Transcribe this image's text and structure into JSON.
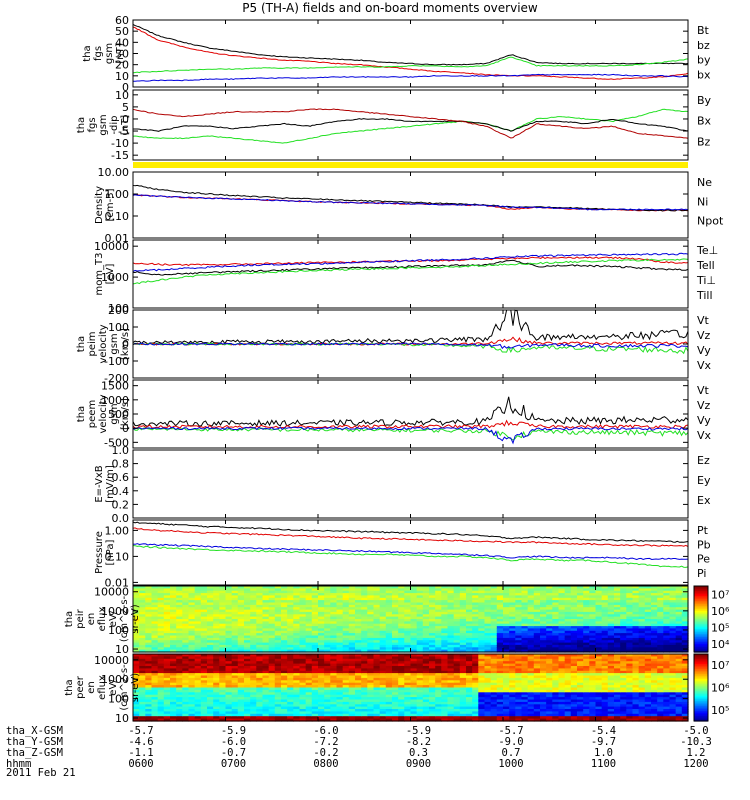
{
  "title": "P5 (TH-A) fields and on-board moments overview",
  "date": "2011 Feb 21",
  "colors": {
    "black": "#000000",
    "red": "#e00000",
    "green": "#22e022",
    "blue": "#0000dd",
    "darkred": "#b00000",
    "yellow": "#ffee00"
  },
  "time_axis": {
    "ticks": [
      "0600",
      "0700",
      "0800",
      "0900",
      "1000",
      "1100",
      "1200"
    ],
    "rows": [
      {
        "label": "tha_X-GSM",
        "values": [
          "-5.7",
          "-5.9",
          "-6.0",
          "-5.9",
          "-5.7",
          "-5.4",
          "-5.0"
        ]
      },
      {
        "label": "tha_Y-GSM",
        "values": [
          "-4.6",
          "-6.0",
          "-7.2",
          "-8.2",
          "-9.0",
          "-9.7",
          "-10.3"
        ]
      },
      {
        "label": "tha_Z-GSM",
        "values": [
          "-1.1",
          "-0.7",
          "-0.2",
          "0.3",
          "0.7",
          "1.0",
          "1.2"
        ]
      },
      {
        "label": "hhmm",
        "values": [
          "0600",
          "0700",
          "0800",
          "0900",
          "1000",
          "1100",
          "1200"
        ]
      }
    ]
  },
  "chart_data": [
    {
      "type": "line",
      "panel": "fgs_gsm",
      "ylabel": [
        "tha",
        "fgs",
        "gsm",
        "[nT]"
      ],
      "yticks": [
        "0",
        "10",
        "20",
        "30",
        "40",
        "50",
        "60"
      ],
      "ylim": [
        0,
        60
      ],
      "series": [
        {
          "name": "Bt",
          "color": "#000000",
          "values": [
            56,
            46,
            40,
            35,
            32,
            29,
            27,
            26,
            25,
            24,
            22,
            21,
            20,
            20,
            21,
            29,
            22,
            21,
            21,
            21,
            21,
            21,
            21
          ]
        },
        {
          "name": "bz",
          "color": "#e00000",
          "values": [
            54,
            42,
            36,
            31,
            28,
            26,
            24,
            23,
            21,
            20,
            18,
            16,
            14,
            13,
            11,
            10,
            10,
            9,
            8,
            7,
            8,
            9,
            12
          ]
        },
        {
          "name": "by",
          "color": "#22e022",
          "values": [
            13,
            14,
            15,
            16,
            16,
            17,
            17,
            17,
            18,
            18,
            18,
            19,
            19,
            18,
            19,
            27,
            19,
            19,
            19,
            19,
            20,
            22,
            25
          ]
        },
        {
          "name": "bx",
          "color": "#0000dd",
          "values": [
            5,
            6,
            6,
            7,
            7,
            8,
            8,
            8,
            9,
            9,
            9,
            9,
            10,
            10,
            10,
            10,
            11,
            11,
            11,
            11,
            10,
            10,
            9
          ]
        }
      ]
    },
    {
      "type": "line",
      "panel": "fgs_gsm_dip",
      "ylabel": [
        "tha",
        "fgs",
        "gsm",
        "-dip",
        "[nT]"
      ],
      "yticks": [
        "-15",
        "-10",
        "-5",
        "0",
        "5",
        "10"
      ],
      "ylim": [
        -17,
        12
      ],
      "series": [
        {
          "name": "By",
          "color": "#22e022",
          "values": [
            -7,
            -8,
            -8,
            -7,
            -8,
            -9,
            -10,
            -8,
            -6,
            -5,
            -4,
            -3,
            -2,
            -1,
            -2,
            -5,
            0,
            1,
            0,
            -1,
            1,
            4,
            3
          ]
        },
        {
          "name": "Bx",
          "color": "#000000",
          "values": [
            -4,
            -5,
            -3,
            -3,
            -4,
            -3,
            -2,
            -3,
            -1,
            0,
            0,
            -1,
            -1,
            -1,
            -2,
            -5,
            -1,
            -1,
            -2,
            0,
            -2,
            -3,
            -5
          ]
        },
        {
          "name": "Bz",
          "color": "#b00000",
          "values": [
            4,
            2,
            1,
            2,
            3,
            3,
            3,
            4,
            4,
            3,
            2,
            1,
            0,
            -1,
            -3,
            -8,
            -2,
            -3,
            -4,
            -3,
            -6,
            -7,
            -8
          ]
        }
      ]
    },
    {
      "type": "line",
      "panel": "density",
      "ylabel": [
        "Density",
        "[cm-3]"
      ],
      "yticks": [
        "0.01",
        "0.10",
        "1.00",
        "10.00"
      ],
      "ylim": [
        -2,
        1
      ],
      "log": true,
      "series": [
        {
          "name": "Ne",
          "color": "#e00000",
          "values": [
            0.9,
            0.8,
            0.7,
            0.65,
            0.6,
            0.55,
            0.5,
            0.45,
            0.42,
            0.4,
            0.38,
            0.36,
            0.34,
            0.32,
            0.3,
            0.2,
            0.25,
            0.22,
            0.2,
            0.2,
            0.18,
            0.18,
            0.18
          ]
        },
        {
          "name": "Ni",
          "color": "#000000",
          "values": [
            2.5,
            1.6,
            1.2,
            1.0,
            0.85,
            0.75,
            0.65,
            0.6,
            0.55,
            0.5,
            0.45,
            0.42,
            0.38,
            0.35,
            0.32,
            0.25,
            0.27,
            0.24,
            0.22,
            0.2,
            0.19,
            0.18,
            0.18
          ]
        },
        {
          "name": "Npot",
          "color": "#0000dd",
          "values": [
            0.9,
            0.8,
            0.7,
            0.65,
            0.6,
            0.55,
            0.5,
            0.45,
            0.42,
            0.4,
            0.38,
            0.36,
            0.34,
            0.32,
            0.3,
            0.25,
            0.25,
            0.22,
            0.2,
            0.2,
            0.2,
            0.2,
            0.2
          ]
        }
      ]
    },
    {
      "type": "line",
      "panel": "mom_temp",
      "ylabel": [
        "mom_T3",
        "[eV]"
      ],
      "yticks": [
        "100",
        "1000",
        "10000"
      ],
      "ylim": [
        2,
        4.2
      ],
      "log": true,
      "series": [
        {
          "name": "Te⊥",
          "color": "#e00000",
          "values": [
            2800,
            2600,
            2500,
            2500,
            2600,
            2700,
            2800,
            2900,
            3000,
            3100,
            3200,
            3300,
            3400,
            3600,
            3800,
            4000,
            4200,
            4300,
            4300,
            4200,
            4000,
            3000,
            2800
          ]
        },
        {
          "name": "Tell",
          "color": "#000000",
          "values": [
            1500,
            1200,
            1300,
            1400,
            1500,
            1600,
            1700,
            1800,
            1900,
            2000,
            2100,
            2200,
            2300,
            2400,
            2500,
            3500,
            2200,
            2400,
            2300,
            2200,
            2000,
            1800,
            1700
          ]
        },
        {
          "name": "Ti⊥",
          "color": "#0000dd",
          "values": [
            1600,
            1700,
            1900,
            2100,
            2300,
            2500,
            2600,
            2700,
            2800,
            3000,
            3200,
            3400,
            3600,
            3800,
            4100,
            4500,
            4800,
            5000,
            5200,
            5300,
            5400,
            5500,
            5600
          ]
        },
        {
          "name": "Till",
          "color": "#22e022",
          "values": [
            600,
            800,
            1000,
            1200,
            1300,
            1400,
            1500,
            1600,
            1700,
            1800,
            1900,
            2000,
            2100,
            2200,
            2400,
            2600,
            2800,
            3000,
            3200,
            3400,
            3500,
            3600,
            3700
          ]
        }
      ]
    },
    {
      "type": "line",
      "panel": "peim_velocity",
      "ylabel": [
        "tha",
        "peim",
        "velocity",
        "gsm",
        "[km/s]"
      ],
      "yticks": [
        "-200",
        "-100",
        "0",
        "100",
        "200"
      ],
      "ylim": [
        -200,
        200
      ],
      "series": [
        {
          "name": "Vt",
          "color": "#000000",
          "values": [
            10,
            10,
            12,
            12,
            14,
            14,
            15,
            15,
            16,
            18,
            20,
            20,
            22,
            25,
            30,
            180,
            40,
            40,
            45,
            45,
            50,
            55,
            60
          ]
        },
        {
          "name": "Vz",
          "color": "#e00000",
          "values": [
            0,
            0,
            0,
            0,
            0,
            0,
            0,
            0,
            0,
            0,
            0,
            0,
            0,
            0,
            5,
            30,
            5,
            5,
            5,
            5,
            5,
            5,
            5
          ]
        },
        {
          "name": "Vy",
          "color": "#22e022",
          "values": [
            0,
            0,
            0,
            0,
            0,
            0,
            0,
            0,
            0,
            0,
            0,
            -5,
            -5,
            -10,
            -15,
            -40,
            -20,
            -25,
            -25,
            -30,
            -30,
            -35,
            -40
          ]
        },
        {
          "name": "Vx",
          "color": "#0000dd",
          "values": [
            0,
            0,
            0,
            0,
            0,
            0,
            0,
            0,
            0,
            0,
            0,
            0,
            0,
            -5,
            -5,
            -20,
            -5,
            -5,
            -10,
            -10,
            -10,
            -10,
            -10
          ]
        }
      ]
    },
    {
      "type": "line",
      "panel": "peem_velocity",
      "ylabel": [
        "tha",
        "peem",
        "velocity",
        "gsm",
        "[km/s]"
      ],
      "yticks": [
        "-500",
        "0",
        "500",
        "1000",
        "1500"
      ],
      "ylim": [
        -700,
        1700
      ],
      "series": [
        {
          "name": "Vt",
          "color": "#000000",
          "values": [
            150,
            160,
            170,
            170,
            170,
            180,
            180,
            180,
            190,
            190,
            200,
            200,
            210,
            220,
            230,
            900,
            250,
            250,
            260,
            270,
            280,
            300,
            320
          ]
        },
        {
          "name": "Vz",
          "color": "#e00000",
          "values": [
            50,
            50,
            50,
            50,
            50,
            50,
            50,
            50,
            50,
            50,
            60,
            60,
            60,
            60,
            60,
            200,
            60,
            60,
            60,
            60,
            60,
            60,
            60
          ]
        },
        {
          "name": "Vy",
          "color": "#22e022",
          "values": [
            -30,
            -40,
            -40,
            -50,
            -50,
            -50,
            -60,
            -60,
            -60,
            -70,
            -70,
            -80,
            -80,
            -90,
            -100,
            -300,
            -120,
            -130,
            -140,
            -150,
            -160,
            -170,
            -180
          ]
        },
        {
          "name": "Vx",
          "color": "#0000dd",
          "values": [
            -10,
            -10,
            -10,
            -10,
            -10,
            -10,
            -10,
            -10,
            -10,
            -10,
            -10,
            -10,
            -10,
            -10,
            -20,
            -500,
            -20,
            -20,
            -20,
            -20,
            -20,
            -20,
            -20
          ]
        }
      ]
    },
    {
      "type": "line",
      "panel": "e_vxb",
      "ylabel": [
        "E=-VxB",
        "[mV/m]"
      ],
      "yticks": [
        "0.0",
        "0.2",
        "0.4",
        "0.6",
        "0.8",
        "1.0"
      ],
      "ylim": [
        0,
        1
      ],
      "series": [
        {
          "name": "Ez",
          "color": "#e00000",
          "values": []
        },
        {
          "name": "Ey",
          "color": "#22e022",
          "values": []
        },
        {
          "name": "Ex",
          "color": "#0000dd",
          "values": []
        }
      ]
    },
    {
      "type": "line",
      "panel": "pressure",
      "ylabel": [
        "Pressure",
        "[nPa]"
      ],
      "yticks": [
        "0.01",
        "0.10",
        "1.00"
      ],
      "ylim": [
        -2.1,
        0.4
      ],
      "log": true,
      "series": [
        {
          "name": "Pt",
          "color": "#000000",
          "values": [
            2.0,
            1.8,
            1.6,
            1.4,
            1.3,
            1.2,
            1.1,
            1.0,
            0.95,
            0.9,
            0.85,
            0.8,
            0.75,
            0.7,
            0.6,
            0.5,
            0.55,
            0.5,
            0.45,
            0.42,
            0.4,
            0.38,
            0.36
          ]
        },
        {
          "name": "Pb",
          "color": "#e00000",
          "values": [
            1.2,
            1.0,
            0.9,
            0.8,
            0.75,
            0.7,
            0.65,
            0.6,
            0.55,
            0.5,
            0.48,
            0.45,
            0.42,
            0.4,
            0.38,
            0.35,
            0.35,
            0.32,
            0.3,
            0.28,
            0.27,
            0.26,
            0.25
          ]
        },
        {
          "name": "Pe",
          "color": "#22e022",
          "values": [
            0.25,
            0.22,
            0.2,
            0.18,
            0.17,
            0.16,
            0.15,
            0.14,
            0.13,
            0.12,
            0.12,
            0.11,
            0.1,
            0.1,
            0.09,
            0.07,
            0.08,
            0.07,
            0.07,
            0.06,
            0.05,
            0.04,
            0.04
          ]
        },
        {
          "name": "Pi",
          "color": "#0000dd",
          "values": [
            0.3,
            0.28,
            0.26,
            0.24,
            0.22,
            0.2,
            0.19,
            0.18,
            0.17,
            0.16,
            0.15,
            0.14,
            0.13,
            0.12,
            0.11,
            0.09,
            0.1,
            0.09,
            0.09,
            0.09,
            0.08,
            0.08,
            0.08
          ]
        }
      ]
    },
    {
      "type": "heatmap",
      "panel": "peir_en_eflux",
      "ylabel": [
        "tha",
        "peir",
        "en",
        "eflux",
        "eV/",
        "(cm^2-s-",
        "sr-eV)"
      ],
      "yticks": [
        "10",
        "100",
        "1000",
        "10000"
      ],
      "ylim": [
        7,
        20000
      ],
      "log": true,
      "colorbar_ticks": [
        "10⁴",
        "10⁵",
        "10⁶",
        "10⁷"
      ],
      "clim": [
        3.7,
        7.2
      ]
    },
    {
      "type": "heatmap",
      "panel": "peer_en_eflux",
      "ylabel": [
        "tha",
        "peer",
        "en",
        "eflux",
        "eV/",
        "(cm^2-s-",
        "sr-eV)"
      ],
      "yticks": [
        "10",
        "100",
        "1000",
        "10000"
      ],
      "ylim": [
        7,
        20000
      ],
      "log": true,
      "colorbar_ticks": [
        "10⁵",
        "10⁶",
        "10⁷"
      ],
      "clim": [
        4.7,
        7.6
      ]
    }
  ]
}
